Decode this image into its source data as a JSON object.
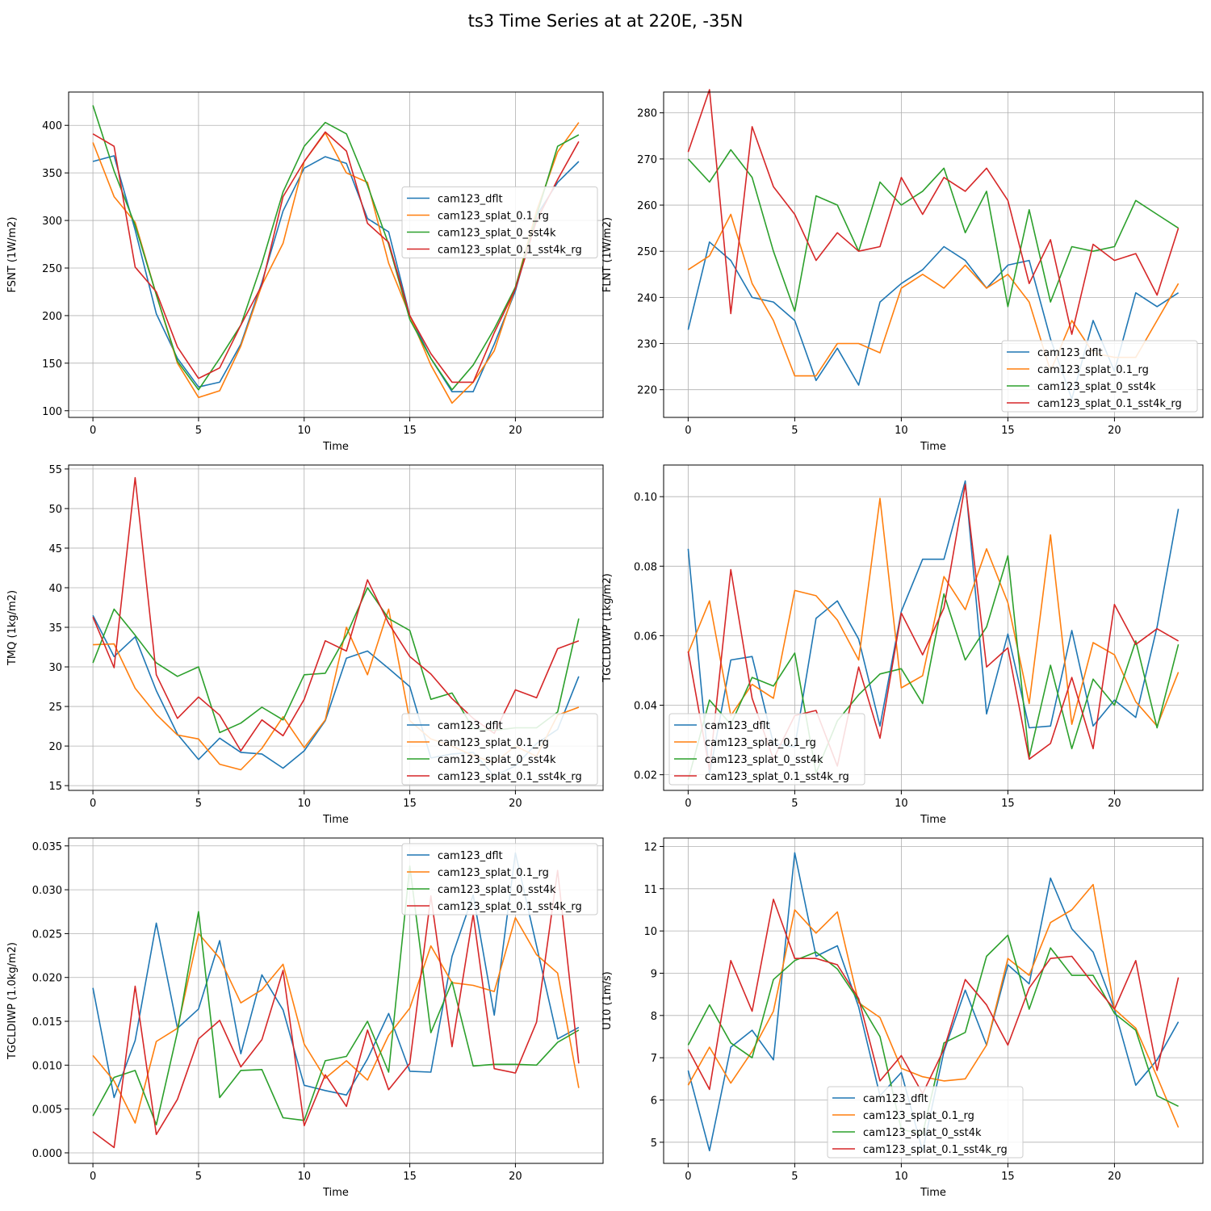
{
  "figure": {
    "title": "ts3 Time Series at at 220E, -35N"
  },
  "colors": {
    "cam123_dflt": "#1f77b4",
    "cam123_splat_0.1_rg": "#ff7f0e",
    "cam123_splat_0_sst4k": "#2ca02c",
    "cam123_splat_0.1_sst4k_rg": "#d62728"
  },
  "chart_data": [
    {
      "type": "line",
      "xlabel": "Time",
      "ylabel": "FSNT (1W/m2)",
      "xlim": [
        -1.15,
        24.15
      ],
      "ylim": [
        435,
        93
      ],
      "xticks": [
        0,
        5,
        10,
        15,
        20
      ],
      "yticks": [
        100,
        150,
        200,
        250,
        300,
        350,
        400
      ],
      "legend_loc": "center-right",
      "x": [
        0,
        1,
        2,
        3,
        4,
        5,
        6,
        7,
        8,
        9,
        10,
        11,
        12,
        13,
        14,
        15,
        16,
        17,
        18,
        19,
        20,
        21,
        22,
        23
      ],
      "series": [
        {
          "name": "cam123_dflt",
          "values": [
            362,
            368,
            290,
            202,
            155,
            125,
            130,
            170,
            235,
            310,
            355,
            367,
            360,
            302,
            288,
            200,
            155,
            120,
            120,
            170,
            226,
            305,
            340,
            362
          ]
        },
        {
          "name": "cam123_splat_0.1_rg",
          "values": [
            382,
            325,
            298,
            222,
            150,
            114,
            121,
            168,
            232,
            276,
            362,
            392,
            350,
            340,
            255,
            200,
            148,
            108,
            130,
            163,
            230,
            310,
            372,
            403
          ]
        },
        {
          "name": "cam123_splat_0_sst4k",
          "values": [
            421,
            352,
            295,
            222,
            152,
            122,
            155,
            190,
            255,
            330,
            378,
            403,
            391,
            337,
            275,
            196,
            155,
            122,
            148,
            186,
            230,
            305,
            378,
            390
          ]
        },
        {
          "name": "cam123_splat_0.1_sst4k_rg",
          "values": [
            391,
            378,
            251,
            225,
            167,
            134,
            145,
            190,
            232,
            325,
            362,
            393,
            373,
            297,
            277,
            200,
            160,
            130,
            130,
            182,
            228,
            300,
            343,
            383
          ]
        }
      ]
    },
    {
      "type": "line",
      "xlabel": "Time",
      "ylabel": "FLNT (1W/m2)",
      "xlim": [
        -1.15,
        24.15
      ],
      "ylim": [
        284.5,
        214
      ],
      "xticks": [
        0,
        5,
        10,
        15,
        20
      ],
      "yticks": [
        220,
        230,
        240,
        250,
        260,
        270,
        280
      ],
      "legend_loc": "lower-right",
      "x": [
        0,
        1,
        2,
        3,
        4,
        5,
        6,
        7,
        8,
        9,
        10,
        11,
        12,
        13,
        14,
        15,
        16,
        17,
        18,
        19,
        20,
        21,
        22,
        23
      ],
      "series": [
        {
          "name": "cam123_dflt",
          "values": [
            233,
            252,
            248,
            240,
            239,
            235,
            222,
            229,
            221,
            239,
            243,
            246,
            251,
            248,
            242,
            247,
            248,
            231,
            218,
            235,
            224,
            241,
            238,
            241
          ]
        },
        {
          "name": "cam123_splat_0.1_rg",
          "values": [
            246,
            249,
            258,
            243,
            235,
            223,
            223,
            230,
            230,
            228,
            242,
            245,
            242,
            247,
            242,
            245,
            239,
            224,
            235,
            228,
            227,
            227,
            235,
            243
          ]
        },
        {
          "name": "cam123_splat_0_sst4k",
          "values": [
            270,
            265,
            272,
            266,
            250,
            237,
            262,
            260,
            250,
            265,
            260,
            263,
            268,
            254,
            263,
            238,
            259,
            239,
            251,
            250,
            251,
            261,
            258,
            255
          ]
        },
        {
          "name": "cam123_splat_0.1_sst4k_rg",
          "values": [
            271.5,
            285,
            236.5,
            277,
            264,
            258,
            248,
            254,
            250,
            251,
            266,
            258,
            266,
            263,
            268,
            261,
            243,
            252.5,
            232,
            251.5,
            248,
            249.5,
            240.5,
            255
          ]
        }
      ]
    },
    {
      "type": "line",
      "xlabel": "Time",
      "ylabel": "TMQ (1kg/m2)",
      "xlim": [
        -1.15,
        24.15
      ],
      "ylim": [
        55.5,
        14.4
      ],
      "xticks": [
        0,
        5,
        10,
        15,
        20
      ],
      "yticks": [
        15,
        20,
        25,
        30,
        35,
        40,
        45,
        50,
        55
      ],
      "legend_loc": "lower-right",
      "x": [
        0,
        1,
        2,
        3,
        4,
        5,
        6,
        7,
        8,
        9,
        10,
        11,
        12,
        13,
        14,
        15,
        16,
        17,
        18,
        19,
        20,
        21,
        22,
        23
      ],
      "series": [
        {
          "name": "cam123_dflt",
          "values": [
            36.5,
            31.3,
            33.8,
            27,
            21.5,
            18.3,
            21,
            19.2,
            19,
            17.2,
            19.4,
            23.2,
            31.1,
            32,
            29.8,
            27.5,
            18.5,
            19,
            19.2,
            16.2,
            17.5,
            20.3,
            22.1,
            28.8
          ]
        },
        {
          "name": "cam123_splat_0.1_rg",
          "values": [
            32.8,
            32.9,
            27.3,
            24,
            21.4,
            20.9,
            17.7,
            17,
            19.7,
            23.7,
            19.8,
            23.3,
            35,
            29,
            37.3,
            23.2,
            20.9,
            20,
            18.8,
            17.9,
            20,
            18.7,
            23.9,
            24.9
          ]
        },
        {
          "name": "cam123_splat_0_sst4k",
          "values": [
            30.5,
            37.3,
            34,
            30.5,
            28.8,
            30,
            21.7,
            22.9,
            24.9,
            23.3,
            29,
            29.2,
            34,
            40,
            36.1,
            34.6,
            25.9,
            26.7,
            22.2,
            22,
            22.3,
            22.3,
            24.3,
            36.1
          ]
        },
        {
          "name": "cam123_splat_0.1_sst4k_rg",
          "values": [
            36.3,
            29.9,
            53.9,
            29,
            23.5,
            26.2,
            23.9,
            19.4,
            23.3,
            21.3,
            25.9,
            33.3,
            32,
            41,
            35.5,
            31.3,
            29.1,
            26,
            23.5,
            21.6,
            27.1,
            26.1,
            32.3,
            33.3
          ]
        }
      ]
    },
    {
      "type": "line",
      "xlabel": "Time",
      "ylabel": "TGCLDLWP (1kg/m2)",
      "xlim": [
        -1.15,
        24.15
      ],
      "ylim": [
        0.1091,
        0.0155
      ],
      "xticks": [
        0,
        5,
        10,
        15,
        20
      ],
      "yticks": [
        0.02,
        0.04,
        0.06,
        0.08,
        0.1
      ],
      "ytick_labels": [
        "0.02",
        "0.04",
        "0.06",
        "0.08",
        "0.10"
      ],
      "legend_loc": "lower-left",
      "x": [
        0,
        1,
        2,
        3,
        4,
        5,
        6,
        7,
        8,
        9,
        10,
        11,
        12,
        13,
        14,
        15,
        16,
        17,
        18,
        19,
        20,
        21,
        22,
        23
      ],
      "series": [
        {
          "name": "cam123_dflt",
          "values": [
            0.085,
            0.02,
            0.053,
            0.054,
            0.029,
            0.028,
            0.065,
            0.07,
            0.059,
            0.034,
            0.067,
            0.082,
            0.082,
            0.1045,
            0.0375,
            0.0605,
            0.0335,
            0.034,
            0.0615,
            0.034,
            0.0415,
            0.0365,
            0.0625,
            0.0965
          ]
        },
        {
          "name": "cam123_splat_0.1_rg",
          "values": [
            0.055,
            0.07,
            0.037,
            0.046,
            0.042,
            0.073,
            0.0715,
            0.0645,
            0.053,
            0.0995,
            0.045,
            0.0485,
            0.077,
            0.0675,
            0.085,
            0.0695,
            0.0405,
            0.089,
            0.0345,
            0.058,
            0.0545,
            0.041,
            0.034,
            0.0495
          ]
        },
        {
          "name": "cam123_splat_0_sst4k",
          "values": [
            0.0185,
            0.0415,
            0.0345,
            0.048,
            0.0455,
            0.055,
            0.0205,
            0.0355,
            0.043,
            0.049,
            0.0505,
            0.0405,
            0.072,
            0.053,
            0.0625,
            0.083,
            0.025,
            0.0515,
            0.0275,
            0.0475,
            0.04,
            0.0585,
            0.0335,
            0.0575
          ]
        },
        {
          "name": "cam123_splat_0.1_sst4k_rg",
          "values": [
            0.0555,
            0.0215,
            0.079,
            0.042,
            0.0245,
            0.037,
            0.0385,
            0.0225,
            0.051,
            0.0305,
            0.0665,
            0.0545,
            0.068,
            0.1035,
            0.051,
            0.0565,
            0.0245,
            0.029,
            0.048,
            0.0275,
            0.069,
            0.0575,
            0.062,
            0.0585
          ]
        }
      ]
    },
    {
      "type": "line",
      "xlabel": "Time",
      "ylabel": "TGCLDIWP (1.0kg/m2)",
      "xlim": [
        -1.15,
        24.15
      ],
      "ylim": [
        0.0359,
        -0.0012
      ],
      "xticks": [
        0,
        5,
        10,
        15,
        20
      ],
      "yticks": [
        0,
        0.005,
        0.01,
        0.015,
        0.02,
        0.025,
        0.03,
        0.035
      ],
      "ytick_labels": [
        "0.000",
        "0.005",
        "0.010",
        "0.015",
        "0.020",
        "0.025",
        "0.030",
        "0.035"
      ],
      "legend_loc": "top-right",
      "x": [
        0,
        1,
        2,
        3,
        4,
        5,
        6,
        7,
        8,
        9,
        10,
        11,
        12,
        13,
        14,
        15,
        16,
        17,
        18,
        19,
        20,
        21,
        22,
        23
      ],
      "series": [
        {
          "name": "cam123_dflt",
          "values": [
            0.0188,
            0.0063,
            0.0128,
            0.0262,
            0.0142,
            0.0164,
            0.0242,
            0.0113,
            0.0203,
            0.0163,
            0.0077,
            0.0071,
            0.0066,
            0.0107,
            0.0159,
            0.0093,
            0.0092,
            0.0224,
            0.0294,
            0.0157,
            0.0342,
            0.0236,
            0.013,
            0.0143
          ]
        },
        {
          "name": "cam123_splat_0.1_rg",
          "values": [
            0.0111,
            0.0082,
            0.0034,
            0.0127,
            0.0142,
            0.025,
            0.0222,
            0.0171,
            0.0186,
            0.0215,
            0.0124,
            0.0085,
            0.0105,
            0.0083,
            0.0134,
            0.0165,
            0.0236,
            0.0194,
            0.0191,
            0.0184,
            0.0268,
            0.0226,
            0.0205,
            0.0074
          ]
        },
        {
          "name": "cam123_splat_0_sst4k",
          "values": [
            0.0042,
            0.0086,
            0.0094,
            0.0032,
            0.0138,
            0.0275,
            0.0063,
            0.0094,
            0.0095,
            0.004,
            0.0037,
            0.0105,
            0.011,
            0.015,
            0.0092,
            0.0327,
            0.0137,
            0.0195,
            0.0099,
            0.0101,
            0.0101,
            0.01,
            0.0126,
            0.014
          ]
        },
        {
          "name": "cam123_splat_0.1_sst4k_rg",
          "values": [
            0.0024,
            0.0006,
            0.019,
            0.0021,
            0.0061,
            0.013,
            0.0151,
            0.0098,
            0.0129,
            0.0208,
            0.0031,
            0.0089,
            0.0053,
            0.014,
            0.0072,
            0.0102,
            0.0293,
            0.0121,
            0.0272,
            0.0096,
            0.0091,
            0.0149,
            0.0322,
            0.0102
          ]
        }
      ]
    },
    {
      "type": "line",
      "xlabel": "Time",
      "ylabel": "U10 (1m/s)",
      "xlim": [
        -1.15,
        24.15
      ],
      "ylim": [
        12.2,
        4.5
      ],
      "xticks": [
        0,
        5,
        10,
        15,
        20
      ],
      "yticks": [
        5,
        6,
        7,
        8,
        9,
        10,
        11,
        12
      ],
      "legend_loc": "lower-center",
      "x": [
        0,
        1,
        2,
        3,
        4,
        5,
        6,
        7,
        8,
        9,
        10,
        11,
        12,
        13,
        14,
        15,
        16,
        17,
        18,
        19,
        20,
        21,
        22,
        23
      ],
      "series": [
        {
          "name": "cam123_dflt",
          "values": [
            6.7,
            4.8,
            7.25,
            7.65,
            6.95,
            11.85,
            9.4,
            9.65,
            8.2,
            6.1,
            6.65,
            4.8,
            7.15,
            8.6,
            7.3,
            9.2,
            8.75,
            11.25,
            10.05,
            9.5,
            8.15,
            6.35,
            6.95,
            7.85
          ]
        },
        {
          "name": "cam123_splat_0.1_rg",
          "values": [
            6.35,
            7.25,
            6.4,
            7.15,
            8.1,
            10.5,
            9.95,
            10.45,
            8.3,
            7.95,
            6.75,
            6.55,
            6.45,
            6.5,
            7.3,
            9.35,
            8.95,
            10.2,
            10.5,
            11.1,
            8.15,
            7.7,
            6.55,
            5.35
          ]
        },
        {
          "name": "cam123_splat_0_sst4k",
          "values": [
            7.3,
            8.25,
            7.35,
            7,
            8.85,
            9.3,
            9.5,
            9.1,
            8.35,
            7.5,
            5.3,
            5.2,
            7.35,
            7.6,
            9.4,
            9.9,
            8.15,
            9.6,
            8.95,
            8.95,
            8.05,
            7.65,
            6.1,
            5.85
          ]
        },
        {
          "name": "cam123_splat_0.1_sst4k_rg",
          "values": [
            7.2,
            6.25,
            9.3,
            8.1,
            10.75,
            9.35,
            9.35,
            9.2,
            8.4,
            6.45,
            7.05,
            6.15,
            7.2,
            8.85,
            8.25,
            7.3,
            8.65,
            9.35,
            9.4,
            8.75,
            8.15,
            9.3,
            6.7,
            8.9
          ]
        }
      ]
    }
  ]
}
